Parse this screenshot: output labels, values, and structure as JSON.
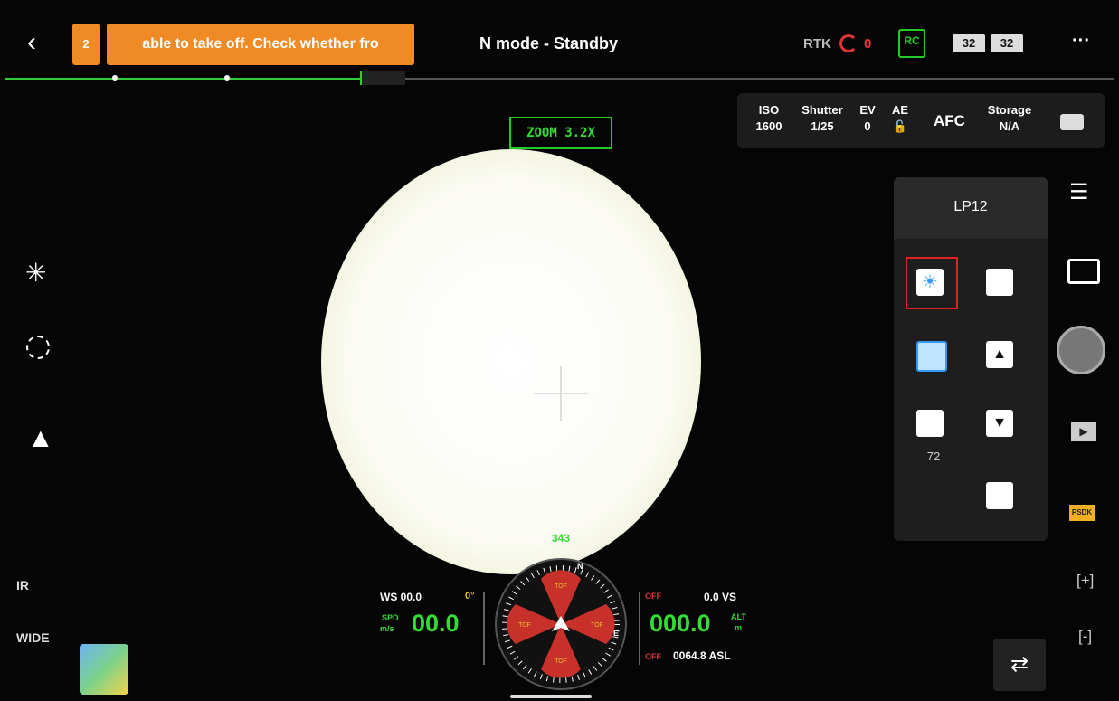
{
  "top_bar": {
    "notification_count": "2",
    "notification_text": "able to take off. Check whether fro",
    "mode": "N mode - Standby",
    "rtk_label": "RTK",
    "rtk_count": "0",
    "rc_label": "RC",
    "battery_left": "32",
    "battery_right": "32"
  },
  "zoom": "ZOOM 3.2X",
  "camera_params": [
    {
      "label": "ISO",
      "value": "1600"
    },
    {
      "label": "Shutter",
      "value": "1/25"
    },
    {
      "label": "EV",
      "value": "0"
    },
    {
      "label": "AE"
    },
    {
      "label": "Storage",
      "value": "N/A"
    }
  ],
  "afc": "AFC",
  "lens_panel": {
    "title": "LP12",
    "brightness_value": "72"
  },
  "left_controls": {
    "ir": "IR",
    "wide": "WIDE"
  },
  "compass": {
    "heading": "343",
    "north": "N",
    "east": "E",
    "sensors": [
      "TOF",
      "TOF",
      "TOF",
      "TOF"
    ]
  },
  "telemetry": {
    "wind_speed": "WS 00.0",
    "gimbal_angle": "0°",
    "speed_label": "SPD",
    "speed_unit": "m/s",
    "speed": "00.0",
    "vs_status": "OFF",
    "vertical_speed": "0.0 VS",
    "altitude": "000.0",
    "altitude_label": "ALT",
    "altitude_unit": "m",
    "asl_status": "OFF",
    "asl": "0064.8 ASL"
  },
  "right_controls": {
    "zoom_in": "[+]",
    "zoom_out": "[-]",
    "psdk": "PSDK"
  }
}
